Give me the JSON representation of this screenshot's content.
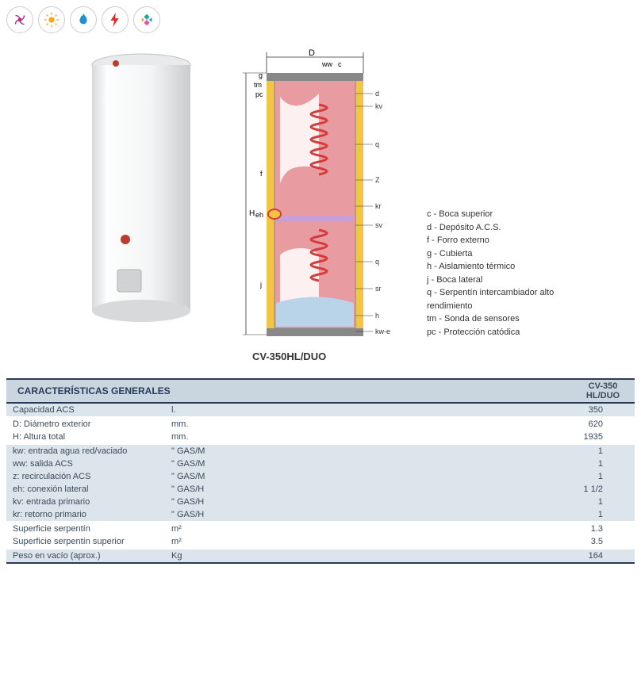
{
  "icons": [
    {
      "name": "spiral-icon",
      "color": "#b02a8f"
    },
    {
      "name": "sun-icon",
      "color": "#f5a623"
    },
    {
      "name": "flame-icon",
      "color": "#1e90d6"
    },
    {
      "name": "bolt-icon",
      "color": "#e02a2a"
    },
    {
      "name": "diamond-icon",
      "color": "#2aa5a0"
    }
  ],
  "model_label": "CV-350HL/DUO",
  "diagram": {
    "top_labels": {
      "D": "D",
      "ww": "ww",
      "c": "c"
    },
    "left_labels": [
      "g",
      "tm",
      "pc",
      "f",
      "H",
      "eh",
      "j"
    ],
    "right_labels": [
      "d",
      "kv",
      "q",
      "Z",
      "kr",
      "sv",
      "q",
      "sr",
      "h",
      "kw-e"
    ],
    "colors": {
      "insulation": "#f4c542",
      "tank": "#e89ba0",
      "coil_upper": "#d43c3c",
      "coil_lower": "#d43c3c",
      "shell": "#888",
      "bottom_water": "#b9d4e8",
      "divider": "#c9a0d6"
    }
  },
  "legend": [
    {
      "k": "c",
      "v": "Boca superior"
    },
    {
      "k": "d",
      "v": "Depósito A.C.S."
    },
    {
      "k": "f",
      "v": "Forro externo"
    },
    {
      "k": "g",
      "v": "Cubierta"
    },
    {
      "k": "h",
      "v": "Aislamiento térmico"
    },
    {
      "k": "j",
      "v": "Boca lateral"
    },
    {
      "k": "q",
      "v": "Serpentín intercambiador alto rendimiento"
    },
    {
      "k": "tm",
      "v": "Sonda de sensores"
    },
    {
      "k": "pc",
      "v": "Protección catódica"
    }
  ],
  "table": {
    "header": "CARACTERÍSTICAS GENERALES",
    "model_col": {
      "line1": "CV-350",
      "line2": "HL/DUO"
    },
    "groups": [
      {
        "band": true,
        "rows": [
          {
            "label": "Capacidad ACS",
            "unit": "l.",
            "val": "350"
          }
        ]
      },
      {
        "band": false,
        "rows": [
          {
            "label": "D: Diámetro exterior",
            "unit": "mm.",
            "val": "620"
          },
          {
            "label": "H: Altura total",
            "unit": "mm.",
            "val": "1935"
          }
        ]
      },
      {
        "band": true,
        "rows": [
          {
            "label": "kw: entrada agua red/vaciado",
            "unit": "\" GAS/M",
            "val": "1"
          },
          {
            "label": "ww: salida ACS",
            "unit": "\" GAS/M",
            "val": "1"
          },
          {
            "label": "z: recirculación ACS",
            "unit": "\" GAS/M",
            "val": "1"
          },
          {
            "label": "eh: conexión lateral",
            "unit": "\" GAS/H",
            "val": "1 1/2"
          },
          {
            "label": "kv: entrada primario",
            "unit": "\" GAS/H",
            "val": "1"
          },
          {
            "label": "kr: retorno primario",
            "unit": "\" GAS/H",
            "val": "1"
          }
        ]
      },
      {
        "band": false,
        "rows": [
          {
            "label": "Superficie serpentín",
            "unit": "m²",
            "val": "1.3"
          },
          {
            "label": "Superficie serpentín superior",
            "unit": "m²",
            "val": "3.5"
          }
        ]
      },
      {
        "band": true,
        "rows": [
          {
            "label": "Peso en vacío (aprox.)",
            "unit": "Kg",
            "val": "164"
          }
        ]
      }
    ]
  }
}
